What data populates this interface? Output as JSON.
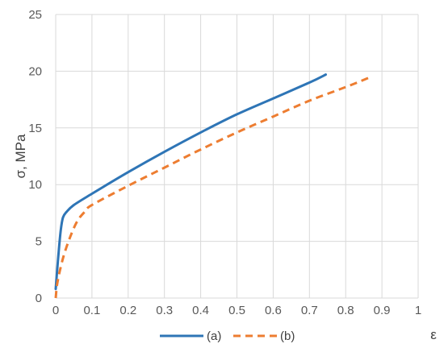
{
  "chart_data": {
    "type": "line",
    "xlabel": "ε",
    "ylabel": "σ, MPa",
    "xlim": [
      0,
      1
    ],
    "ylim": [
      0,
      25
    ],
    "x_ticks": [
      "0",
      "0.1",
      "0.2",
      "0.3",
      "0.4",
      "0.5",
      "0.6",
      "0.7",
      "0.8",
      "0.9",
      "1"
    ],
    "y_ticks": [
      "0",
      "5",
      "10",
      "15",
      "20",
      "25"
    ],
    "grid": true,
    "legend_position": "bottom",
    "series": [
      {
        "name": "(a)",
        "color": "#2e75b6",
        "style": "solid",
        "points": [
          [
            0,
            0.8
          ],
          [
            0.003,
            2.0
          ],
          [
            0.008,
            4.0
          ],
          [
            0.014,
            6.0
          ],
          [
            0.02,
            7.1
          ],
          [
            0.03,
            7.6
          ],
          [
            0.05,
            8.2
          ],
          [
            0.1,
            9.2
          ],
          [
            0.2,
            11.1
          ],
          [
            0.3,
            12.9
          ],
          [
            0.4,
            14.6
          ],
          [
            0.5,
            16.2
          ],
          [
            0.6,
            17.6
          ],
          [
            0.7,
            19.0
          ],
          [
            0.745,
            19.7
          ]
        ]
      },
      {
        "name": "(b)",
        "color": "#ed7d31",
        "style": "dashed",
        "points": [
          [
            0,
            0
          ],
          [
            0.005,
            1.4
          ],
          [
            0.02,
            3.5
          ],
          [
            0.04,
            5.4
          ],
          [
            0.06,
            6.8
          ],
          [
            0.08,
            7.6
          ],
          [
            0.1,
            8.2
          ],
          [
            0.2,
            9.9
          ],
          [
            0.3,
            11.5
          ],
          [
            0.4,
            13.1
          ],
          [
            0.5,
            14.6
          ],
          [
            0.6,
            16.0
          ],
          [
            0.7,
            17.4
          ],
          [
            0.8,
            18.6
          ],
          [
            0.87,
            19.5
          ]
        ]
      }
    ]
  }
}
